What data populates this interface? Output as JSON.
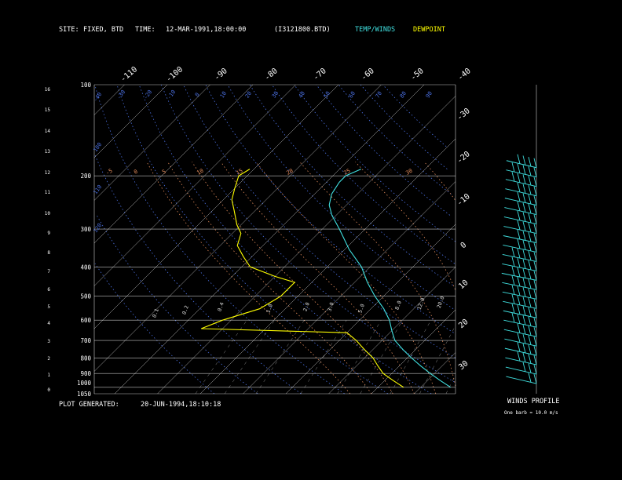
{
  "header": {
    "site_label": "SITE:",
    "site_value": "FIXED, BTD",
    "time_label": "TIME:",
    "time_value": "12-MAR-1991,18:00:00",
    "file_value": "(I3121800.BTD)",
    "legend_temp": "TEMP/WINDS",
    "legend_dew": "DEWPOINT"
  },
  "footer": {
    "plot_generated_label": "PLOT GENERATED:",
    "plot_generated_value": "20-JUN-1994,18:10:18",
    "winds_profile_title": "WINDS PROFILE",
    "barb_note": "One barb = 10.0 m/s"
  },
  "colors": {
    "background": "#000000",
    "temperature": "#40e0e0",
    "dewpoint": "#ffff00",
    "winds": "#40e0e0",
    "isotherms": "#ffffff",
    "isobars": "#ffffff",
    "dry_adiabats": "#4a6fe0",
    "moist_adiabats": "#e08a5a",
    "mixing_ratio": "#ffffff"
  },
  "chart_data": {
    "type": "line",
    "title": "",
    "skew_t": true,
    "x_axis": "temperature (C)",
    "y_axis": "pressure (mb), log scale",
    "pressure_levels": [
      100,
      200,
      300,
      400,
      500,
      600,
      700,
      800,
      900,
      1000,
      1050
    ],
    "pressure_labels": [
      "100",
      "200",
      "300",
      "400",
      "500",
      "600",
      "700",
      "800",
      "900",
      "1000",
      "1050"
    ],
    "height_km_ticks": [
      "0",
      "1",
      "2",
      "3",
      "4",
      "5",
      "6",
      "7",
      "8",
      "9",
      "10",
      "11",
      "12",
      "13",
      "14",
      "15",
      "16"
    ],
    "temp_ticks_top": [
      "-110",
      "-100",
      "-90",
      "-80",
      "-70",
      "-60",
      "-50",
      "-40"
    ],
    "temp_ticks_right": [
      "-30",
      "-20",
      "-10",
      "0",
      "10",
      "20",
      "30"
    ],
    "dry_adiabat_labels": [
      "-40",
      "-30",
      "-20",
      "-10",
      "0",
      "10",
      "20",
      "30",
      "40",
      "50",
      "60",
      "70",
      "80",
      "90",
      "100",
      "110",
      "120"
    ],
    "moist_adiabat_labels": [
      "-5",
      "0",
      "5",
      "10",
      "15",
      "20",
      "25",
      "30"
    ],
    "mixing_ratio_labels": [
      "0.1",
      "0.2",
      "0.4",
      "1.0",
      "2.0",
      "3.0",
      "5.0",
      "8.0",
      "12.0",
      "20.0"
    ],
    "temperature_profile": {
      "name": "TEMP/WINDS",
      "points": [
        {
          "p": 1000,
          "t": 17
        },
        {
          "p": 950,
          "t": 13
        },
        {
          "p": 900,
          "t": 9
        },
        {
          "p": 850,
          "t": 5
        },
        {
          "p": 800,
          "t": 1
        },
        {
          "p": 750,
          "t": -3
        },
        {
          "p": 700,
          "t": -7
        },
        {
          "p": 650,
          "t": -10
        },
        {
          "p": 600,
          "t": -13
        },
        {
          "p": 550,
          "t": -17
        },
        {
          "p": 500,
          "t": -22
        },
        {
          "p": 450,
          "t": -27
        },
        {
          "p": 400,
          "t": -32
        },
        {
          "p": 350,
          "t": -39
        },
        {
          "p": 300,
          "t": -46
        },
        {
          "p": 270,
          "t": -51
        },
        {
          "p": 250,
          "t": -54
        },
        {
          "p": 230,
          "t": -56
        },
        {
          "p": 210,
          "t": -57
        },
        {
          "p": 200,
          "t": -57
        },
        {
          "p": 190,
          "t": -55
        }
      ]
    },
    "dewpoint_profile": {
      "name": "DEWPOINT",
      "points": [
        {
          "p": 1000,
          "t": 6
        },
        {
          "p": 950,
          "t": 2
        },
        {
          "p": 900,
          "t": -2
        },
        {
          "p": 850,
          "t": -5
        },
        {
          "p": 800,
          "t": -8
        },
        {
          "p": 750,
          "t": -12
        },
        {
          "p": 700,
          "t": -16
        },
        {
          "p": 660,
          "t": -20
        },
        {
          "p": 640,
          "t": -55
        },
        {
          "p": 600,
          "t": -52
        },
        {
          "p": 550,
          "t": -46
        },
        {
          "p": 500,
          "t": -44
        },
        {
          "p": 450,
          "t": -44
        },
        {
          "p": 430,
          "t": -50
        },
        {
          "p": 400,
          "t": -58
        },
        {
          "p": 370,
          "t": -62
        },
        {
          "p": 340,
          "t": -66
        },
        {
          "p": 310,
          "t": -68
        },
        {
          "p": 290,
          "t": -71
        },
        {
          "p": 260,
          "t": -75
        },
        {
          "p": 240,
          "t": -78
        },
        {
          "p": 220,
          "t": -80
        },
        {
          "p": 200,
          "t": -82
        },
        {
          "p": 190,
          "t": -81
        }
      ]
    },
    "winds_profile": {
      "note": "One barb = 10.0 m/s",
      "barbs": [
        {
          "h_km": 0.5,
          "barbs": 2
        },
        {
          "h_km": 1.0,
          "barbs": 3
        },
        {
          "h_km": 1.5,
          "barbs": 4
        },
        {
          "h_km": 2.0,
          "barbs": 4
        },
        {
          "h_km": 2.5,
          "barbs": 4
        },
        {
          "h_km": 3.0,
          "barbs": 4
        },
        {
          "h_km": 3.5,
          "barbs": 5
        },
        {
          "h_km": 4.0,
          "barbs": 5
        },
        {
          "h_km": 4.5,
          "barbs": 5
        },
        {
          "h_km": 5.0,
          "barbs": 5
        },
        {
          "h_km": 5.5,
          "barbs": 5
        },
        {
          "h_km": 6.0,
          "barbs": 5
        },
        {
          "h_km": 6.5,
          "barbs": 5
        },
        {
          "h_km": 7.0,
          "barbs": 5
        },
        {
          "h_km": 7.5,
          "barbs": 4
        },
        {
          "h_km": 8.0,
          "barbs": 4
        },
        {
          "h_km": 8.5,
          "barbs": 4
        },
        {
          "h_km": 9.0,
          "barbs": 4
        },
        {
          "h_km": 9.5,
          "barbs": 4
        },
        {
          "h_km": 10.0,
          "barbs": 4
        },
        {
          "h_km": 10.5,
          "barbs": 4
        },
        {
          "h_km": 11.0,
          "barbs": 5
        },
        {
          "h_km": 11.5,
          "barbs": 5
        },
        {
          "h_km": 12.0,
          "barbs": 4
        }
      ]
    }
  }
}
